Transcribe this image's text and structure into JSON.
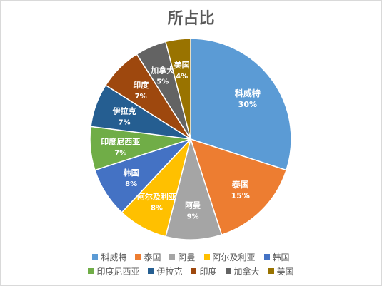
{
  "chart_data": {
    "type": "pie",
    "title": "所占比",
    "categories": [
      "科威特",
      "泰国",
      "阿曼",
      "阿尔及利亚",
      "韩国",
      "印度尼西亚",
      "伊拉克",
      "印度",
      "加拿大",
      "美国"
    ],
    "values": [
      30,
      15,
      9,
      8,
      8,
      7,
      7,
      7,
      5,
      4
    ],
    "value_labels": [
      "30%",
      "15%",
      "9%",
      "8%",
      "8%",
      "7%",
      "7%",
      "7%",
      "5%",
      "4%"
    ],
    "colors": [
      "#5b9bd5",
      "#ed7d31",
      "#a5a5a5",
      "#ffc000",
      "#4472c4",
      "#70ad47",
      "#255e91",
      "#9e480e",
      "#636363",
      "#997300"
    ],
    "legend_position": "bottom",
    "start_angle": "12 o'clock",
    "direction": "clockwise"
  }
}
